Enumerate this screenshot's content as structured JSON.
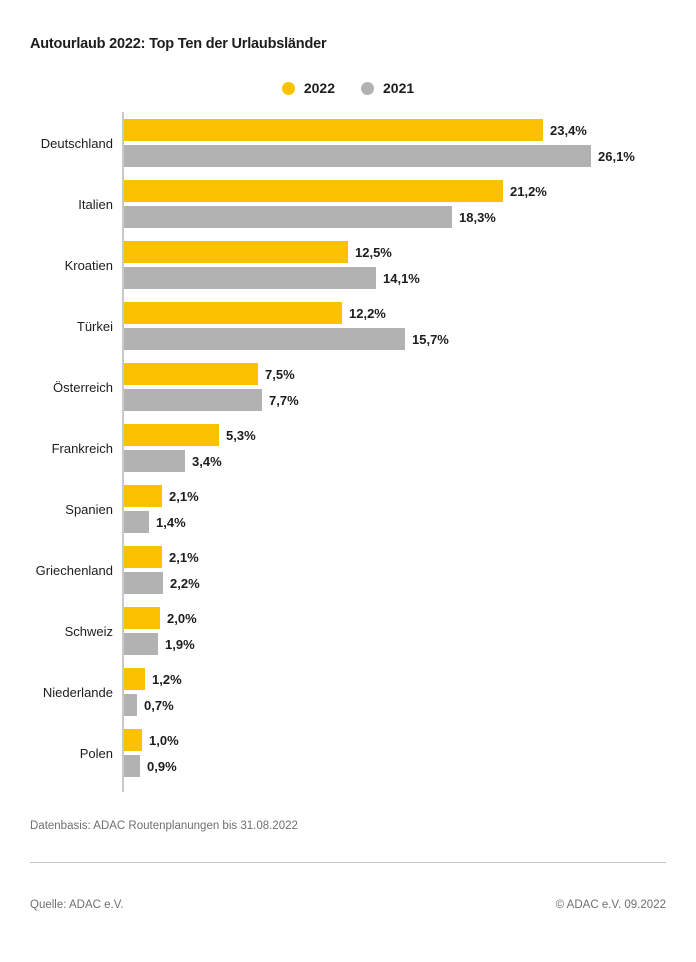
{
  "title": "Autourlaub 2022: Top Ten der Urlaubsländer",
  "legend": {
    "items": [
      {
        "label": "2022",
        "color": "#fcc200"
      },
      {
        "label": "2021",
        "color": "#b2b2b2"
      }
    ]
  },
  "chart_data": {
    "type": "bar",
    "orientation": "horizontal",
    "title": "Autourlaub 2022: Top Ten der Urlaubsländer",
    "value_suffix": "%",
    "xlim": [
      0,
      28
    ],
    "grid": false,
    "legend_position": "top-center",
    "categories": [
      "Deutschland",
      "Italien",
      "Kroatien",
      "Türkei",
      "Österreich",
      "Frankreich",
      "Spanien",
      "Griechenland",
      "Schweiz",
      "Niederlande",
      "Polen"
    ],
    "series": [
      {
        "name": "2022",
        "color": "#fcc200",
        "values": [
          23.4,
          21.2,
          12.5,
          12.2,
          7.5,
          5.3,
          2.1,
          2.1,
          2.0,
          1.2,
          1.0
        ],
        "display_values": [
          "23,4%",
          "21,2%",
          "12,5%",
          "12,2%",
          "7,5%",
          "5,3%",
          "2,1%",
          "2,1%",
          "2,0%",
          "1,2%",
          "1,0%"
        ]
      },
      {
        "name": "2021",
        "color": "#b2b2b2",
        "values": [
          26.1,
          18.3,
          14.1,
          15.7,
          7.7,
          3.4,
          1.4,
          2.2,
          1.9,
          0.7,
          0.9
        ],
        "display_values": [
          "26,1%",
          "18,3%",
          "14,1%",
          "15,7%",
          "7,7%",
          "3,4%",
          "1,4%",
          "2,2%",
          "1,9%",
          "0,7%",
          "0,9%"
        ]
      }
    ]
  },
  "footer": {
    "datenbasis": "Datenbasis: ADAC Routenplanungen bis 31.08.2022",
    "quelle": "Quelle: ADAC e.V.",
    "copyright": "© ADAC e.V. 09.2022"
  },
  "colors": {
    "bar_2022": "#fcc200",
    "bar_2021": "#b2b2b2",
    "axis": "#c9c9c9",
    "text": "#1d1d1b",
    "muted_text": "#706f6f"
  }
}
